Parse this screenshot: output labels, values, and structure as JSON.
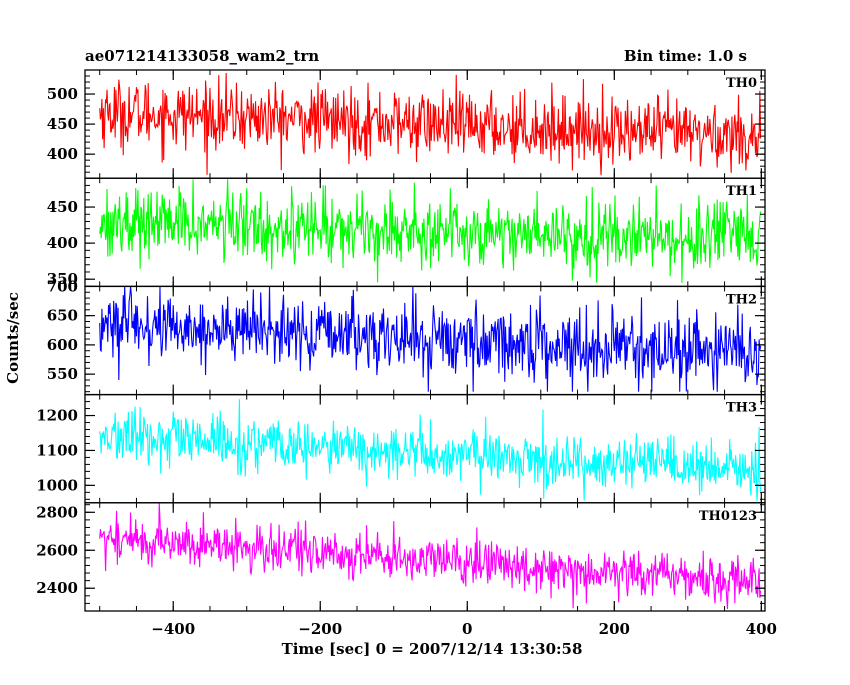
{
  "header": {
    "title": "ae071214133058_wam2_trn",
    "bin_time": "Bin time: 1.0 s"
  },
  "chart_data": {
    "type": "line",
    "xlabel": "Time [sec] 0 = 2007/12/14 13:30:58",
    "ylabel": "Counts/sec",
    "xlim": [
      -520,
      405
    ],
    "x_start": -500,
    "x_end": 399,
    "x_step": 1,
    "xticks": [
      -400,
      -200,
      0,
      200,
      400
    ],
    "x_tick_labels": [
      "−400",
      "−200",
      "0",
      "200",
      "400"
    ],
    "panels": [
      {
        "name": "TH0",
        "color": "#ff0000",
        "ylim": [
          360,
          540
        ],
        "yticks": [
          400,
          450,
          500
        ],
        "ytick_labels": [
          "400",
          "450",
          "500"
        ],
        "trend_start": 470,
        "trend_end": 430,
        "noise": 28,
        "value_range": [
          365,
          540
        ]
      },
      {
        "name": "TH1",
        "color": "#00ff00",
        "ylim": [
          340,
          490
        ],
        "yticks": [
          350,
          400,
          450
        ],
        "ytick_labels": [
          "350",
          "400",
          "450"
        ],
        "trend_start": 430,
        "trend_end": 405,
        "noise": 24,
        "value_range": [
          345,
          490
        ]
      },
      {
        "name": "TH2",
        "color": "#0000ff",
        "ylim": [
          515,
          700
        ],
        "yticks": [
          550,
          600,
          650,
          700
        ],
        "ytick_labels": [
          "550",
          "600",
          "650",
          "700"
        ],
        "trend_start": 635,
        "trend_end": 585,
        "noise": 30,
        "value_range": [
          520,
          700
        ]
      },
      {
        "name": "TH3",
        "color": "#00ffff",
        "ylim": [
          950,
          1260
        ],
        "yticks": [
          1000,
          1100,
          1200
        ],
        "ytick_labels": [
          "1000",
          "1100",
          "1200"
        ],
        "trend_start": 1140,
        "trend_end": 1040,
        "noise": 38,
        "value_range": [
          955,
          1260
        ]
      },
      {
        "name": "TH0123",
        "color": "#ff00ff",
        "ylim": [
          2280,
          2850
        ],
        "yticks": [
          2400,
          2600,
          2800
        ],
        "ytick_labels": [
          "2400",
          "2600",
          "2800"
        ],
        "trend_start": 2665,
        "trend_end": 2435,
        "noise": 62,
        "value_range": [
          2290,
          2850
        ]
      }
    ]
  }
}
